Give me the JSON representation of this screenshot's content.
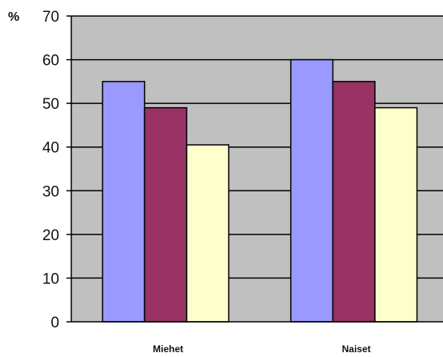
{
  "chart_data": {
    "type": "bar",
    "title": "",
    "xlabel": "",
    "ylabel": "%",
    "ylim": [
      0,
      70
    ],
    "yticks": [
      0,
      10,
      20,
      30,
      40,
      50,
      60,
      70
    ],
    "grid": true,
    "categories": [
      "Miehet",
      "Naiset"
    ],
    "series": [
      {
        "color": "#9999ff",
        "values": [
          55,
          60
        ]
      },
      {
        "color": "#993366",
        "values": [
          49,
          55
        ]
      },
      {
        "color": "#ffffcc",
        "values": [
          40.5,
          49
        ]
      }
    ],
    "plot_background": "#c0c0c0"
  }
}
